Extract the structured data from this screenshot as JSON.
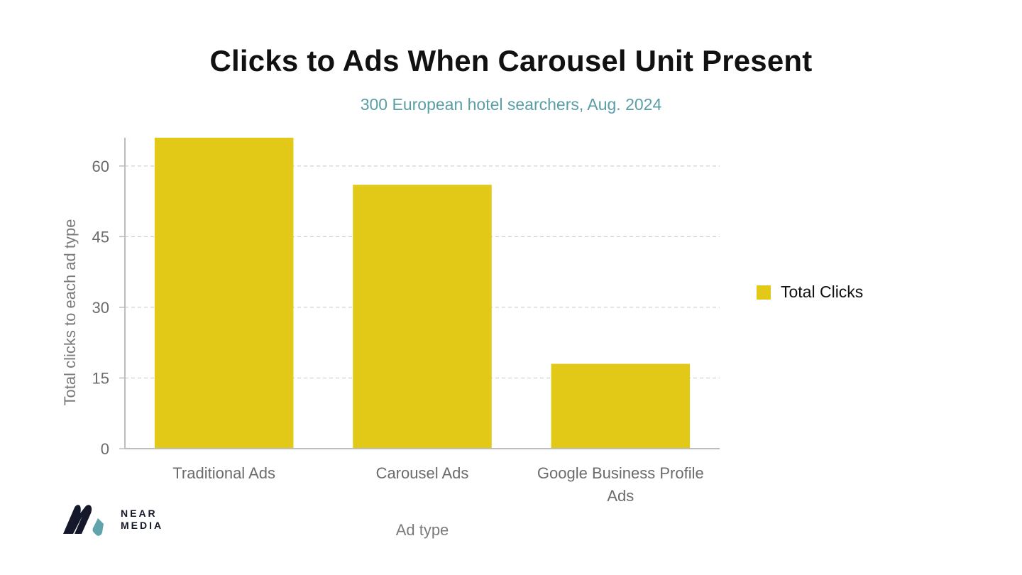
{
  "chart_data": {
    "type": "bar",
    "title": "Clicks to Ads When Carousel Unit Present",
    "subtitle": "300 European hotel searchers, Aug. 2024",
    "xlabel": "Ad type",
    "ylabel": "Total clicks to each ad type",
    "categories": [
      [
        "Traditional Ads"
      ],
      [
        "Carousel Ads"
      ],
      [
        "Google Business Profile",
        "Ads"
      ]
    ],
    "series": [
      {
        "name": "Total Clicks",
        "values": [
          66,
          56,
          18
        ],
        "color": "#e2c918"
      }
    ],
    "ylim": [
      0,
      66
    ],
    "yticks": [
      0,
      15,
      30,
      45,
      60
    ],
    "grid": true,
    "legend_position": "right"
  },
  "logo": {
    "line1": "NEAR",
    "line2": "MEDIA",
    "colors": {
      "dark": "#14182a",
      "accent": "#5fa3ad"
    }
  }
}
